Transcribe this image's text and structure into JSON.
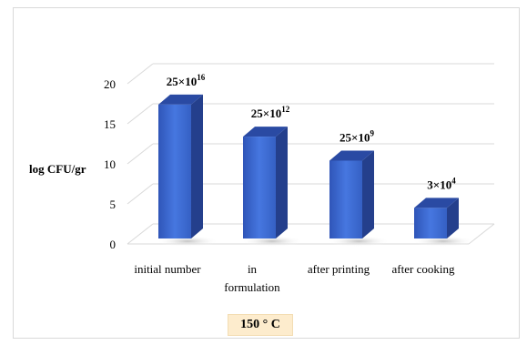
{
  "chart_data": {
    "type": "bar",
    "ylabel": "log CFU/gr",
    "ylim": [
      0,
      20
    ],
    "yticks": [
      0,
      5,
      10,
      15,
      20
    ],
    "categories": [
      {
        "lines": [
          "initial number"
        ]
      },
      {
        "lines": [
          "in",
          "formulation"
        ]
      },
      {
        "lines": [
          "after printing"
        ]
      },
      {
        "lines": [
          "after cooking"
        ]
      }
    ],
    "values": [
      17.4,
      13.4,
      10.4,
      4.5
    ],
    "data_labels": [
      {
        "base": "25×10",
        "exp": "16"
      },
      {
        "base": "25×10",
        "exp": "12"
      },
      {
        "base": "25×10",
        "exp": "9"
      },
      {
        "base": "3×10",
        "exp": "4"
      }
    ],
    "grid": true,
    "bar_color": "#3d69d4",
    "bar_color_dark": "#243f8c",
    "style": "3d-column"
  },
  "caption": "150 ° C"
}
